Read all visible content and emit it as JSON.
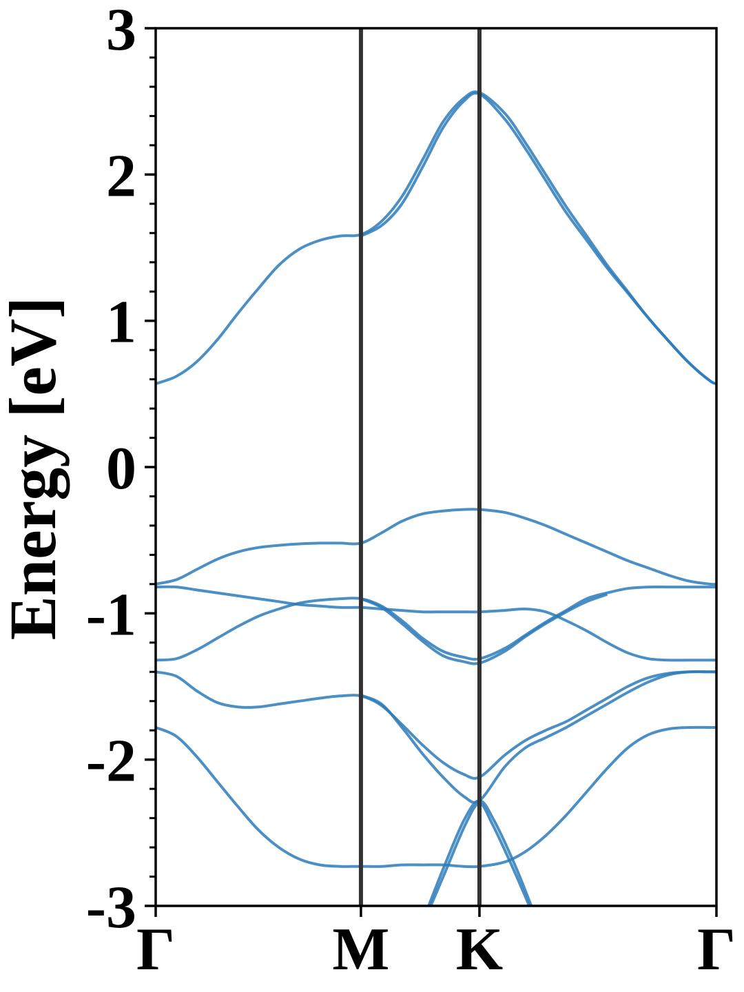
{
  "chart_data": {
    "type": "line",
    "title": "",
    "xlabel": "",
    "ylabel": "Energy [eV]",
    "ylim": [
      -3,
      3
    ],
    "y_ticks": [
      3,
      2,
      1,
      0,
      -1,
      -2,
      -3
    ],
    "y_tick_labels": [
      "3",
      "2",
      "1",
      "0",
      "-1",
      "-2",
      "-3"
    ],
    "y_minor_tick_step": 0.2,
    "k_points": [
      {
        "label": "Γ",
        "x": 0
      },
      {
        "label": "M",
        "x": 1
      },
      {
        "label": "K",
        "x": 1.5774
      },
      {
        "label": "Γ",
        "x": 2.732
      }
    ],
    "xlim": [
      0,
      2.732
    ],
    "high_symmetry_lines": [
      1,
      1.5774
    ],
    "grid": false,
    "legend": "none",
    "line_color": "#2b7bba",
    "series": [
      {
        "x": [
          0,
          0.1,
          0.2,
          0.3,
          0.4,
          0.5,
          0.6,
          0.7,
          0.8,
          0.9,
          1.0,
          1.1,
          1.2,
          1.3,
          1.4,
          1.5,
          1.5774,
          1.7,
          1.8,
          1.9,
          2.0,
          2.1,
          2.2,
          2.3,
          2.4,
          2.5,
          2.6,
          2.7,
          2.732
        ],
        "y": [
          0.57,
          0.62,
          0.72,
          0.87,
          1.05,
          1.22,
          1.38,
          1.49,
          1.55,
          1.58,
          1.59,
          1.68,
          1.85,
          2.1,
          2.36,
          2.52,
          2.56,
          2.42,
          2.22,
          2.0,
          1.78,
          1.58,
          1.38,
          1.2,
          1.02,
          0.86,
          0.71,
          0.59,
          0.57
        ]
      },
      {
        "x": [
          1.0,
          1.1,
          1.2,
          1.3,
          1.4,
          1.5,
          1.5774,
          1.7,
          1.8,
          1.9,
          2.0,
          2.1,
          2.2,
          2.3,
          2.4,
          2.5,
          2.6,
          2.7,
          2.732
        ],
        "y": [
          1.58,
          1.65,
          1.8,
          2.05,
          2.32,
          2.5,
          2.55,
          2.38,
          2.18,
          1.96,
          1.74,
          1.55,
          1.36,
          1.19,
          1.02,
          0.86,
          0.71,
          0.59,
          0.57
        ]
      },
      {
        "x": [
          0,
          0.1,
          0.2,
          0.3,
          0.4,
          0.5,
          0.6,
          0.7,
          0.8,
          0.9,
          1.0,
          1.1,
          1.2,
          1.3,
          1.4,
          1.5,
          1.5774,
          1.7,
          1.8,
          1.9,
          2.0,
          2.1,
          2.2,
          2.3,
          2.4,
          2.5,
          2.6,
          2.7,
          2.732
        ],
        "y": [
          -0.8,
          -0.77,
          -0.7,
          -0.63,
          -0.58,
          -0.55,
          -0.535,
          -0.525,
          -0.52,
          -0.52,
          -0.52,
          -0.45,
          -0.37,
          -0.32,
          -0.3,
          -0.29,
          -0.29,
          -0.31,
          -0.35,
          -0.4,
          -0.46,
          -0.52,
          -0.58,
          -0.64,
          -0.69,
          -0.74,
          -0.78,
          -0.8,
          -0.8
        ]
      },
      {
        "x": [
          0,
          0.1,
          0.2,
          0.3,
          0.4,
          0.5,
          0.6,
          0.7,
          0.8,
          0.9,
          1.0,
          1.1,
          1.2,
          1.3,
          1.4,
          1.5,
          1.5774,
          1.7,
          1.8,
          1.9,
          2.0,
          2.1,
          2.2,
          2.3,
          2.4,
          2.5,
          2.6,
          2.7,
          2.732
        ],
        "y": [
          -0.82,
          -0.82,
          -0.84,
          -0.86,
          -0.88,
          -0.9,
          -0.92,
          -0.94,
          -0.95,
          -0.96,
          -0.96,
          -0.97,
          -0.98,
          -0.99,
          -0.99,
          -0.99,
          -0.99,
          -0.98,
          -0.97,
          -0.99,
          -1.05,
          -1.12,
          -1.2,
          -1.27,
          -1.31,
          -1.32,
          -1.32,
          -1.32,
          -1.32
        ]
      },
      {
        "x": [
          0,
          0.1,
          0.2,
          0.3,
          0.4,
          0.5,
          0.6,
          0.7,
          0.8,
          0.9,
          1.0,
          1.1,
          1.2,
          1.3,
          1.4,
          1.5,
          1.5774,
          1.7,
          1.8,
          1.9,
          2.0,
          2.1,
          2.2,
          2.3,
          2.4,
          2.5,
          2.6,
          2.7,
          2.732
        ],
        "y": [
          -1.32,
          -1.31,
          -1.25,
          -1.17,
          -1.09,
          -1.02,
          -0.97,
          -0.93,
          -0.91,
          -0.9,
          -0.9,
          -0.95,
          -1.05,
          -1.17,
          -1.26,
          -1.3,
          -1.31,
          -1.24,
          -1.15,
          -1.06,
          -0.98,
          -0.9,
          -0.86,
          -0.83,
          -0.82,
          -0.82,
          -0.82,
          -0.82,
          -0.82
        ]
      },
      {
        "x": [
          1.0,
          1.1,
          1.2,
          1.3,
          1.4,
          1.5,
          1.5774,
          1.7,
          1.8,
          1.9,
          2.0,
          2.1,
          2.2
        ],
        "y": [
          -0.9,
          -0.96,
          -1.07,
          -1.19,
          -1.29,
          -1.33,
          -1.34,
          -1.26,
          -1.16,
          -1.07,
          -0.99,
          -0.92,
          -0.87
        ]
      },
      {
        "x": [
          0,
          0.1,
          0.2,
          0.3,
          0.4,
          0.5,
          0.6,
          0.7,
          0.8,
          0.9,
          1.0,
          1.1,
          1.2,
          1.3,
          1.4,
          1.5,
          1.5774,
          1.7,
          1.8,
          1.9,
          2.0,
          2.1,
          2.2,
          2.3,
          2.4,
          2.5,
          2.6,
          2.7,
          2.732
        ],
        "y": [
          -1.4,
          -1.43,
          -1.53,
          -1.61,
          -1.64,
          -1.64,
          -1.62,
          -1.6,
          -1.58,
          -1.565,
          -1.565,
          -1.63,
          -1.76,
          -1.9,
          -2.02,
          -2.1,
          -2.12,
          -1.97,
          -1.87,
          -1.8,
          -1.74,
          -1.66,
          -1.58,
          -1.5,
          -1.44,
          -1.41,
          -1.4,
          -1.4,
          -1.4
        ]
      },
      {
        "x": [
          1.0,
          1.1,
          1.2,
          1.3,
          1.4,
          1.5,
          1.5774,
          1.7,
          1.8,
          1.9,
          2.0,
          2.1,
          2.2,
          2.3,
          2.4,
          2.5,
          2.6,
          2.7,
          2.732
        ],
        "y": [
          -1.56,
          -1.62,
          -1.78,
          -1.96,
          -2.12,
          -2.25,
          -2.28,
          -2.05,
          -1.92,
          -1.85,
          -1.78,
          -1.7,
          -1.62,
          -1.54,
          -1.47,
          -1.42,
          -1.4,
          -1.4,
          -1.4
        ]
      },
      {
        "x": [
          0,
          0.1,
          0.2,
          0.3,
          0.4,
          0.5,
          0.6,
          0.7,
          0.8,
          0.9,
          1.0,
          1.1,
          1.2,
          1.3,
          1.4,
          1.5,
          1.5774,
          1.7,
          1.8,
          1.9,
          2.0,
          2.1,
          2.2,
          2.3,
          2.4,
          2.5,
          2.6,
          2.7,
          2.732
        ],
        "y": [
          -1.78,
          -1.84,
          -1.98,
          -2.15,
          -2.32,
          -2.48,
          -2.6,
          -2.68,
          -2.72,
          -2.73,
          -2.73,
          -2.73,
          -2.72,
          -2.72,
          -2.72,
          -2.73,
          -2.73,
          -2.7,
          -2.63,
          -2.52,
          -2.38,
          -2.22,
          -2.06,
          -1.92,
          -1.83,
          -1.79,
          -1.78,
          -1.78,
          -1.78
        ]
      },
      {
        "x": [
          1.33,
          1.4,
          1.5,
          1.5774,
          1.65,
          1.75,
          1.83
        ],
        "y": [
          -3.0,
          -2.75,
          -2.42,
          -2.28,
          -2.42,
          -2.72,
          -3.0
        ]
      },
      {
        "x": [
          1.34,
          1.41,
          1.51,
          1.5774,
          1.64,
          1.74,
          1.82
        ],
        "y": [
          -3.0,
          -2.77,
          -2.44,
          -2.3,
          -2.44,
          -2.74,
          -3.0
        ]
      }
    ]
  }
}
